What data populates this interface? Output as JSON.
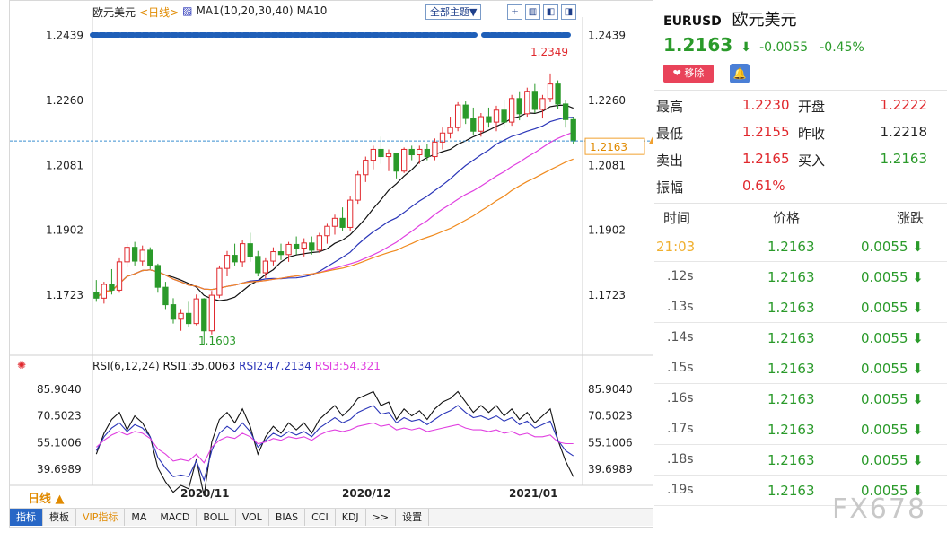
{
  "chart_toolbar": {
    "title": "欧元美元",
    "period": "<日线>",
    "ma_label": "MA1(10,20,30,40)",
    "ma10": "MA10",
    "theme": "全部主题▼",
    "tools": [
      "🞡",
      "▥",
      "◧",
      "◨"
    ]
  },
  "main_axis": {
    "left_ticks": [
      "1.2439",
      "1.2260",
      "1.2081",
      "1.1902",
      "1.1723"
    ],
    "right_ticks": [
      "1.2439",
      "1.2260",
      "1.2081",
      "1.1902",
      "1.1723"
    ],
    "high_label": "1.2349",
    "low_label": "1.1603",
    "current_label": "1.2163"
  },
  "rsi": {
    "label": "RSI(6,12,24)",
    "rsi1": "RSI1:35.0063",
    "rsi2": "RSI2:47.2134",
    "rsi3": "RSI3:54.321",
    "left_ticks": [
      "85.9040",
      "70.5023",
      "55.1006",
      "39.6989"
    ],
    "right_ticks": [
      "85.9040",
      "70.5023",
      "55.1006",
      "39.6989"
    ]
  },
  "x_axis": [
    "2020/11",
    "2020/12",
    "2021/01"
  ],
  "period_label": "日线 ▲",
  "tabs": [
    {
      "label": "指标",
      "active": true
    },
    {
      "label": "模板"
    },
    {
      "label": "VIP指标",
      "vip": true
    },
    {
      "label": "MA"
    },
    {
      "label": "MACD"
    },
    {
      "label": "BOLL"
    },
    {
      "label": "VOL"
    },
    {
      "label": "BIAS"
    },
    {
      "label": "CCI"
    },
    {
      "label": "KDJ"
    },
    {
      "label": ">>"
    },
    {
      "label": "设置"
    }
  ],
  "quote": {
    "code": "EURUSD",
    "name": "欧元美元",
    "price": "1.2163",
    "arrow": "⬇",
    "change": "-0.0055",
    "change_pct": "-0.45%",
    "remove_btn": "❤ 移除",
    "bell_icon": "🔔",
    "rows": [
      {
        "k1": "最高",
        "v1": "1.2230",
        "k2": "开盘",
        "v2": "1.2222"
      },
      {
        "k1": "最低",
        "v1": "1.2155",
        "k2": "昨收",
        "v2": "1.2218"
      },
      {
        "k1": "卖出",
        "v1": "1.2165",
        "k2": "买入",
        "v2": "1.2163"
      },
      {
        "k1": "振幅",
        "v1": "0.61%"
      }
    ]
  },
  "ticks_table": {
    "headers": [
      "时间",
      "价格",
      "涨跌"
    ],
    "rows": [
      {
        "time": "21:03",
        "price": "1.2163",
        "chg": "0.0055",
        "highlight": true
      },
      {
        "time": ".12s",
        "price": "1.2163",
        "chg": "0.0055"
      },
      {
        "time": ".13s",
        "price": "1.2163",
        "chg": "0.0055"
      },
      {
        "time": ".14s",
        "price": "1.2163",
        "chg": "0.0055"
      },
      {
        "time": ".15s",
        "price": "1.2163",
        "chg": "0.0055"
      },
      {
        "time": ".16s",
        "price": "1.2163",
        "chg": "0.0055"
      },
      {
        "time": ".17s",
        "price": "1.2163",
        "chg": "0.0055"
      },
      {
        "time": ".18s",
        "price": "1.2163",
        "chg": "0.0055"
      },
      {
        "time": ".19s",
        "price": "1.2163",
        "chg": "0.0055"
      }
    ]
  },
  "watermark": "FX678",
  "colors": {
    "up": "#e0282d",
    "down": "#2a9a2a",
    "ma1": "#111111",
    "ma2": "#2a35b8",
    "ma3": "#e040e0",
    "ma4": "#f08a1e"
  },
  "chart_data": {
    "type": "candlestick",
    "x_labels": [
      "2020/11",
      "2020/12",
      "2021/01"
    ],
    "ylim": [
      1.158,
      1.246
    ],
    "candles": [
      [
        1.1745,
        1.178,
        1.172,
        1.173
      ],
      [
        1.173,
        1.1775,
        1.1715,
        1.1768
      ],
      [
        1.1768,
        1.181,
        1.174,
        1.1752
      ],
      [
        1.1752,
        1.184,
        1.1745,
        1.183
      ],
      [
        1.183,
        1.188,
        1.1815,
        1.187
      ],
      [
        1.187,
        1.1885,
        1.182,
        1.1832
      ],
      [
        1.1832,
        1.1875,
        1.182,
        1.1862
      ],
      [
        1.1862,
        1.187,
        1.181,
        1.182
      ],
      [
        1.182,
        1.1825,
        1.1745,
        1.176
      ],
      [
        1.176,
        1.1775,
        1.17,
        1.1712
      ],
      [
        1.1712,
        1.173,
        1.166,
        1.1672
      ],
      [
        1.1672,
        1.17,
        1.164,
        1.1688
      ],
      [
        1.1688,
        1.172,
        1.165,
        1.166
      ],
      [
        1.166,
        1.174,
        1.1655,
        1.1728
      ],
      [
        1.1728,
        1.173,
        1.1603,
        1.164
      ],
      [
        1.164,
        1.175,
        1.163,
        1.1738
      ],
      [
        1.1738,
        1.182,
        1.173,
        1.1812
      ],
      [
        1.1812,
        1.186,
        1.179,
        1.1848
      ],
      [
        1.1848,
        1.188,
        1.182,
        1.183
      ],
      [
        1.183,
        1.189,
        1.1815,
        1.188
      ],
      [
        1.188,
        1.191,
        1.183,
        1.1845
      ],
      [
        1.1845,
        1.186,
        1.179,
        1.18
      ],
      [
        1.18,
        1.184,
        1.1785,
        1.1832
      ],
      [
        1.1832,
        1.187,
        1.182,
        1.1858
      ],
      [
        1.1858,
        1.188,
        1.1835,
        1.185
      ],
      [
        1.185,
        1.1885,
        1.183,
        1.1878
      ],
      [
        1.1878,
        1.19,
        1.185,
        1.1868
      ],
      [
        1.1868,
        1.1895,
        1.1845,
        1.1882
      ],
      [
        1.1882,
        1.19,
        1.185,
        1.1862
      ],
      [
        1.1862,
        1.191,
        1.1855,
        1.1902
      ],
      [
        1.1902,
        1.1935,
        1.188,
        1.1928
      ],
      [
        1.1928,
        1.196,
        1.1905,
        1.195
      ],
      [
        1.195,
        1.198,
        1.1915,
        1.1925
      ],
      [
        1.1925,
        1.201,
        1.1915,
        1.2
      ],
      [
        1.2,
        1.208,
        1.199,
        1.207
      ],
      [
        1.207,
        1.212,
        1.205,
        1.211
      ],
      [
        1.211,
        1.215,
        1.2085,
        1.214
      ],
      [
        1.214,
        1.2175,
        1.21,
        1.212
      ],
      [
        1.212,
        1.214,
        1.208,
        1.2128
      ],
      [
        1.2128,
        1.213,
        1.206,
        1.208
      ],
      [
        1.208,
        1.2145,
        1.2075,
        1.214
      ],
      [
        1.214,
        1.215,
        1.211,
        1.2125
      ],
      [
        1.2125,
        1.215,
        1.21,
        1.214
      ],
      [
        1.214,
        1.2155,
        1.211,
        1.212
      ],
      [
        1.212,
        1.217,
        1.211,
        1.216
      ],
      [
        1.216,
        1.22,
        1.214,
        1.2185
      ],
      [
        1.2185,
        1.223,
        1.217,
        1.22
      ],
      [
        1.22,
        1.227,
        1.219,
        1.2262
      ],
      [
        1.2262,
        1.2272,
        1.221,
        1.2225
      ],
      [
        1.2225,
        1.2255,
        1.218,
        1.219
      ],
      [
        1.219,
        1.224,
        1.2175,
        1.223
      ],
      [
        1.223,
        1.2255,
        1.22,
        1.2215
      ],
      [
        1.2215,
        1.226,
        1.219,
        1.2248
      ],
      [
        1.2248,
        1.2275,
        1.22,
        1.2215
      ],
      [
        1.2215,
        1.229,
        1.2205,
        1.228
      ],
      [
        1.228,
        1.23,
        1.222,
        1.2238
      ],
      [
        1.2238,
        1.231,
        1.223,
        1.23
      ],
      [
        1.23,
        1.232,
        1.224,
        1.225
      ],
      [
        1.225,
        1.229,
        1.2225,
        1.228
      ],
      [
        1.228,
        1.2349,
        1.227,
        1.232
      ],
      [
        1.232,
        1.233,
        1.225,
        1.2265
      ],
      [
        1.2265,
        1.2275,
        1.22,
        1.2222
      ],
      [
        1.2222,
        1.223,
        1.2155,
        1.2163
      ]
    ],
    "rsi1": [
      48,
      60,
      68,
      72,
      62,
      70,
      66,
      58,
      40,
      32,
      26,
      30,
      28,
      45,
      24,
      55,
      68,
      72,
      66,
      74,
      64,
      48,
      58,
      64,
      60,
      66,
      62,
      66,
      60,
      68,
      72,
      76,
      70,
      74,
      80,
      82,
      84,
      76,
      78,
      68,
      74,
      70,
      73,
      68,
      74,
      78,
      80,
      84,
      78,
      72,
      76,
      72,
      76,
      70,
      74,
      68,
      72,
      66,
      70,
      74,
      56,
      44,
      35
    ],
    "rsi2": [
      50,
      58,
      63,
      66,
      61,
      65,
      63,
      58,
      46,
      40,
      35,
      36,
      35,
      44,
      33,
      50,
      60,
      64,
      61,
      66,
      61,
      52,
      56,
      60,
      58,
      61,
      59,
      61,
      58,
      63,
      66,
      69,
      66,
      68,
      72,
      74,
      76,
      71,
      72,
      66,
      69,
      67,
      68,
      65,
      68,
      71,
      73,
      76,
      72,
      69,
      70,
      68,
      70,
      67,
      69,
      65,
      67,
      63,
      65,
      67,
      56,
      50,
      47
    ],
    "rsi3": [
      52,
      56,
      59,
      61,
      59,
      61,
      60,
      57,
      51,
      48,
      44,
      45,
      44,
      48,
      43,
      52,
      56,
      58,
      57,
      60,
      58,
      54,
      55,
      57,
      56,
      58,
      57,
      58,
      56,
      59,
      61,
      62,
      61,
      62,
      64,
      65,
      66,
      64,
      65,
      62,
      63,
      62,
      63,
      61,
      62,
      63,
      64,
      65,
      63,
      62,
      62,
      61,
      62,
      60,
      61,
      59,
      60,
      58,
      58,
      59,
      55,
      54,
      54
    ]
  }
}
